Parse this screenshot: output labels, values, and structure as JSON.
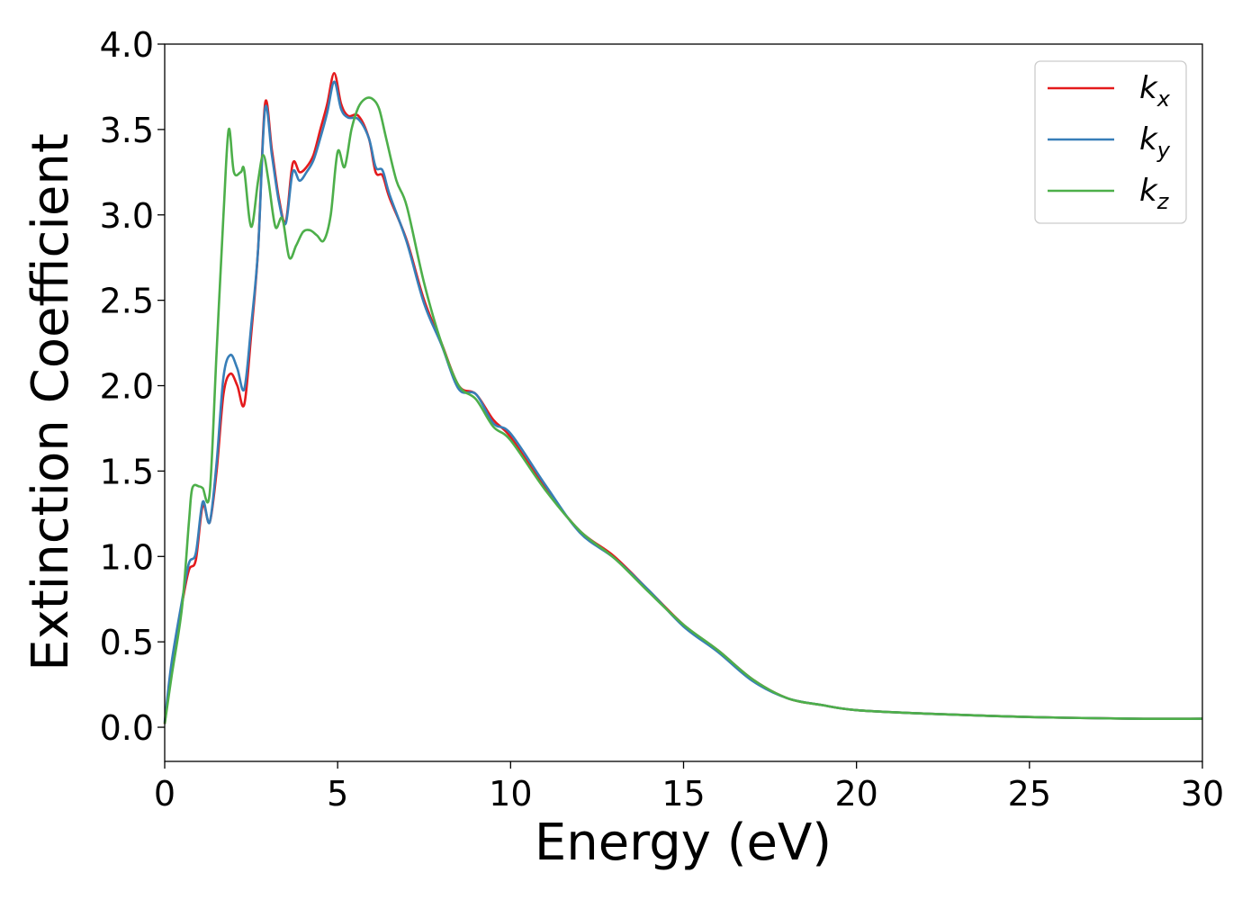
{
  "chart_data": {
    "type": "line",
    "title": "",
    "xlabel": "Energy (eV)",
    "ylabel": "Extinction Coefficient",
    "xlim": [
      0,
      30
    ],
    "ylim": [
      -0.2,
      4.0
    ],
    "x_ticks": [
      0,
      5,
      10,
      15,
      20,
      25,
      30
    ],
    "x_tick_labels": [
      "0",
      "5",
      "10",
      "15",
      "20",
      "25",
      "30"
    ],
    "y_ticks": [
      0.0,
      0.5,
      1.0,
      1.5,
      2.0,
      2.5,
      3.0,
      3.5,
      4.0
    ],
    "y_tick_labels": [
      "0.0",
      "0.5",
      "1.0",
      "1.5",
      "2.0",
      "2.5",
      "3.0",
      "3.5",
      "4.0"
    ],
    "grid": false,
    "legend_position": "top-right",
    "series": [
      {
        "name": "k_x",
        "label_base": "k",
        "label_sub": "x",
        "color": "#e41a1c",
        "x": [
          0,
          0.2,
          0.5,
          0.7,
          0.9,
          1.1,
          1.3,
          1.5,
          1.7,
          1.9,
          2.1,
          2.3,
          2.5,
          2.7,
          2.9,
          3.1,
          3.3,
          3.5,
          3.7,
          3.9,
          4.1,
          4.3,
          4.5,
          4.7,
          4.9,
          5.1,
          5.3,
          5.6,
          5.9,
          6.1,
          6.3,
          6.5,
          7.0,
          7.5,
          8.0,
          8.5,
          9.0,
          9.5,
          10.0,
          11.0,
          12.0,
          13.0,
          14.0,
          15.0,
          16.0,
          17.0,
          18.0,
          19.0,
          20.0,
          22.0,
          25.0,
          28.0,
          30.0
        ],
        "y": [
          0.02,
          0.35,
          0.72,
          0.92,
          0.98,
          1.3,
          1.2,
          1.5,
          1.95,
          2.07,
          2.0,
          1.89,
          2.3,
          2.8,
          3.65,
          3.38,
          3.1,
          2.96,
          3.3,
          3.25,
          3.28,
          3.35,
          3.5,
          3.65,
          3.83,
          3.65,
          3.58,
          3.58,
          3.45,
          3.25,
          3.23,
          3.1,
          2.85,
          2.5,
          2.25,
          2.0,
          1.95,
          1.8,
          1.7,
          1.4,
          1.15,
          1.0,
          0.8,
          0.6,
          0.45,
          0.28,
          0.17,
          0.13,
          0.1,
          0.08,
          0.06,
          0.05,
          0.05
        ]
      },
      {
        "name": "k_y",
        "label_base": "k",
        "label_sub": "y",
        "color": "#377eb8",
        "x": [
          0,
          0.2,
          0.5,
          0.7,
          0.9,
          1.1,
          1.3,
          1.5,
          1.7,
          1.9,
          2.1,
          2.3,
          2.5,
          2.7,
          2.9,
          3.1,
          3.3,
          3.5,
          3.7,
          3.9,
          4.1,
          4.3,
          4.5,
          4.7,
          4.9,
          5.1,
          5.3,
          5.6,
          5.9,
          6.1,
          6.3,
          6.5,
          7.0,
          7.5,
          8.0,
          8.5,
          9.0,
          9.5,
          10.0,
          11.0,
          12.0,
          13.0,
          14.0,
          15.0,
          16.0,
          17.0,
          18.0,
          19.0,
          20.0,
          22.0,
          25.0,
          28.0,
          30.0
        ],
        "y": [
          0.03,
          0.38,
          0.74,
          0.96,
          1.02,
          1.32,
          1.2,
          1.55,
          2.05,
          2.18,
          2.1,
          1.98,
          2.35,
          2.8,
          3.62,
          3.35,
          3.08,
          2.95,
          3.25,
          3.2,
          3.25,
          3.32,
          3.45,
          3.6,
          3.78,
          3.62,
          3.57,
          3.56,
          3.45,
          3.28,
          3.26,
          3.12,
          2.84,
          2.48,
          2.24,
          1.98,
          1.95,
          1.78,
          1.72,
          1.42,
          1.14,
          0.99,
          0.8,
          0.59,
          0.44,
          0.27,
          0.17,
          0.13,
          0.1,
          0.08,
          0.06,
          0.05,
          0.05
        ]
      },
      {
        "name": "k_z",
        "label_base": "k",
        "label_sub": "z",
        "color": "#4daf4a",
        "x": [
          0,
          0.2,
          0.5,
          0.7,
          0.8,
          1.0,
          1.1,
          1.3,
          1.5,
          1.7,
          1.85,
          2.0,
          2.2,
          2.3,
          2.5,
          2.7,
          2.85,
          3.0,
          3.2,
          3.4,
          3.6,
          3.8,
          4.0,
          4.2,
          4.4,
          4.6,
          4.8,
          5.0,
          5.2,
          5.4,
          5.6,
          5.8,
          6.0,
          6.2,
          6.4,
          6.7,
          7.0,
          7.5,
          8.0,
          8.5,
          9.0,
          9.5,
          10.0,
          11.0,
          12.0,
          13.0,
          14.0,
          15.0,
          16.0,
          17.0,
          18.0,
          19.0,
          20.0,
          22.0,
          25.0,
          28.0,
          30.0
        ],
        "y": [
          0.02,
          0.3,
          0.7,
          1.2,
          1.4,
          1.41,
          1.4,
          1.37,
          2.2,
          3.0,
          3.5,
          3.25,
          3.25,
          3.26,
          2.93,
          3.2,
          3.35,
          3.2,
          2.93,
          2.98,
          2.75,
          2.82,
          2.9,
          2.91,
          2.88,
          2.85,
          3.0,
          3.37,
          3.28,
          3.5,
          3.63,
          3.68,
          3.68,
          3.62,
          3.45,
          3.2,
          3.05,
          2.6,
          2.25,
          2.0,
          1.92,
          1.76,
          1.68,
          1.39,
          1.15,
          0.99,
          0.79,
          0.6,
          0.45,
          0.28,
          0.17,
          0.13,
          0.1,
          0.08,
          0.06,
          0.05,
          0.05
        ]
      }
    ]
  }
}
